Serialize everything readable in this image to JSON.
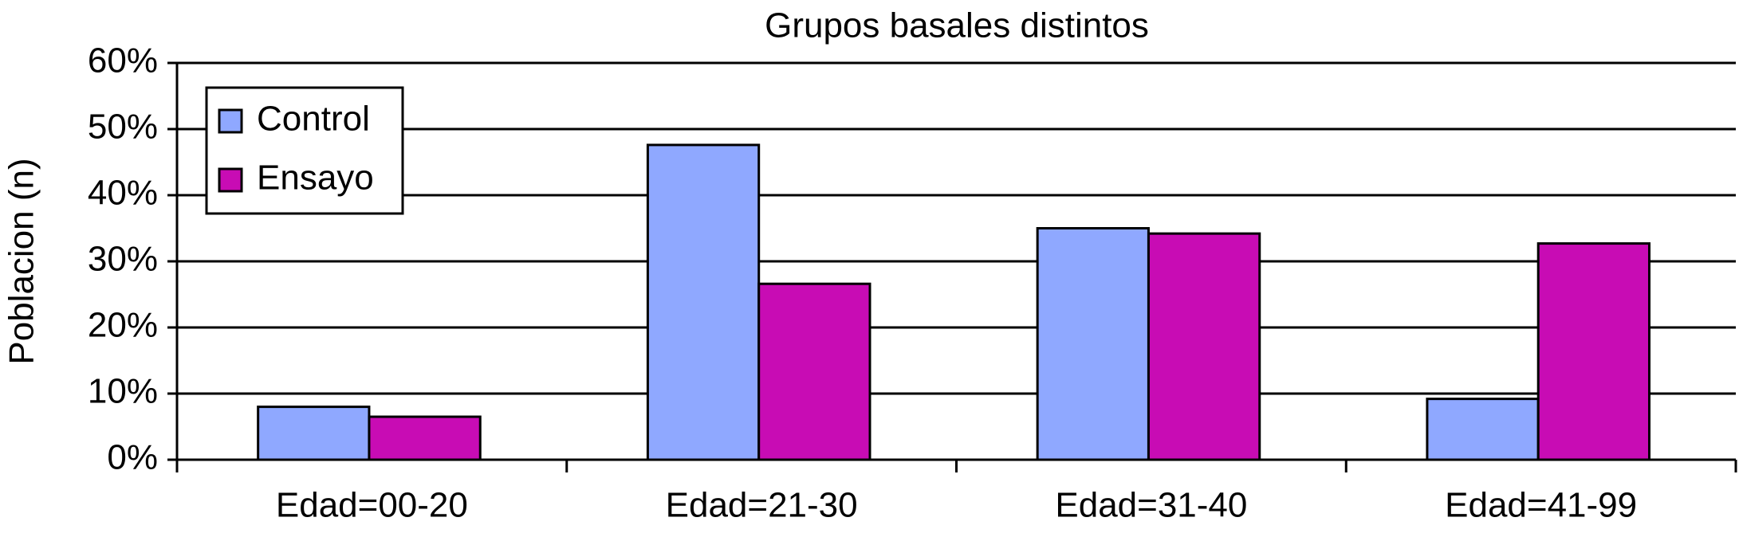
{
  "chart_data": {
    "type": "bar",
    "title": "Grupos basales distintos",
    "y_label": "Poblacion (n)",
    "categories": [
      "Edad=00-20",
      "Edad=21-30",
      "Edad=31-40",
      "Edad=41-99"
    ],
    "series": [
      {
        "name": "Control",
        "color": "#8fa8ff",
        "values": [
          8,
          47.6,
          35,
          9.2
        ]
      },
      {
        "name": "Ensayo",
        "color": "#c80cb4",
        "values": [
          6.5,
          26.6,
          34.2,
          32.7
        ]
      }
    ],
    "ylim": [
      0,
      60
    ],
    "yticks": [
      {
        "value": 0,
        "label": "0%"
      },
      {
        "value": 10,
        "label": "10%"
      },
      {
        "value": 20,
        "label": "20%"
      },
      {
        "value": 30,
        "label": "30%"
      },
      {
        "value": 40,
        "label": "40%"
      },
      {
        "value": 50,
        "label": "50%"
      },
      {
        "value": 60,
        "label": "60%"
      }
    ],
    "grid": true,
    "legend": "top-left"
  }
}
